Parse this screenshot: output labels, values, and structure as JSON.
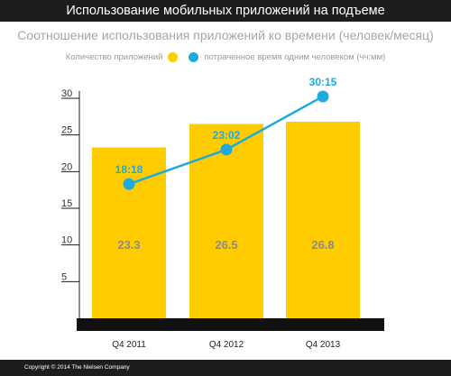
{
  "title": "Использование мобильных приложений на подъеме",
  "subtitle": "Соотношение использования приложений ко времени (человек/месяц)",
  "legend": {
    "bars_label": "Количество приложений",
    "line_label": "потраченное время одним человеком (чч:мм)"
  },
  "colors": {
    "bar": "#ffcc00",
    "line": "#1fa9e1",
    "bar_label": "#8c8c8c",
    "axis": "#1a1a1a"
  },
  "footer": "Copyright © 2014 The Nielsen Company",
  "chart_data": {
    "type": "bar",
    "categories": [
      "Q4 2011",
      "Q4 2012",
      "Q4 2013"
    ],
    "yticks": [
      5,
      10,
      15,
      20,
      25,
      30
    ],
    "ylim": [
      0,
      30
    ],
    "series": [
      {
        "name": "Количество приложений",
        "type": "bar",
        "values": [
          23.3,
          26.5,
          26.8
        ],
        "labels": [
          "23.3",
          "26.5",
          "26.8"
        ]
      },
      {
        "name": "потраченное время одним человеком (чч:мм)",
        "type": "line",
        "values": [
          18.3,
          23.0,
          30.25
        ],
        "labels": [
          "18:18",
          "23:02",
          "30:15"
        ]
      }
    ],
    "grid": false
  }
}
